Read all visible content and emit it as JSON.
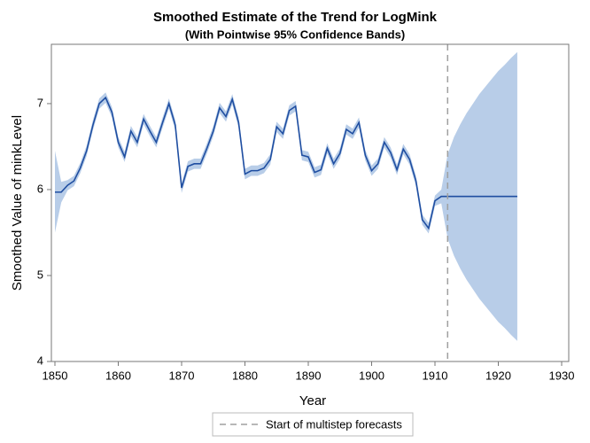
{
  "chart_data": {
    "type": "band-line",
    "title": "Smoothed Estimate of the Trend for LogMink",
    "subtitle": "(With Pointwise 95% Confidence Bands)",
    "x_label": "Year",
    "y_label": "Smoothed Value of minkLevel",
    "x": [
      1850,
      1851,
      1852,
      1853,
      1854,
      1855,
      1856,
      1857,
      1858,
      1859,
      1860,
      1861,
      1862,
      1863,
      1864,
      1865,
      1866,
      1867,
      1868,
      1869,
      1870,
      1871,
      1872,
      1873,
      1874,
      1875,
      1876,
      1877,
      1878,
      1879,
      1880,
      1881,
      1882,
      1883,
      1884,
      1885,
      1886,
      1887,
      1888,
      1889,
      1890,
      1891,
      1892,
      1893,
      1894,
      1895,
      1896,
      1897,
      1898,
      1899,
      1900,
      1901,
      1902,
      1903,
      1904,
      1905,
      1906,
      1907,
      1908,
      1909,
      1910,
      1911,
      1912,
      1913,
      1914,
      1915,
      1916,
      1917,
      1918,
      1919,
      1920,
      1921,
      1922,
      1923
    ],
    "series": [
      {
        "color": "#1f4ea1",
        "values": [
          5.97,
          5.97,
          6.05,
          6.1,
          6.25,
          6.45,
          6.75,
          7.0,
          7.07,
          6.9,
          6.55,
          6.38,
          6.68,
          6.55,
          6.82,
          6.68,
          6.55,
          6.78,
          7.0,
          6.75,
          6.02,
          6.27,
          6.3,
          6.3,
          6.48,
          6.68,
          6.95,
          6.85,
          7.05,
          6.78,
          6.18,
          6.22,
          6.22,
          6.25,
          6.35,
          6.73,
          6.65,
          6.92,
          6.97,
          6.4,
          6.38,
          6.2,
          6.23,
          6.48,
          6.3,
          6.42,
          6.7,
          6.65,
          6.78,
          6.4,
          6.22,
          6.3,
          6.55,
          6.43,
          6.23,
          6.47,
          6.35,
          6.1,
          5.65,
          5.55,
          5.87,
          5.92,
          5.92,
          5.92,
          5.92,
          5.92,
          5.92,
          5.92,
          5.92,
          5.92,
          5.92,
          5.92,
          5.92,
          5.92
        ]
      }
    ],
    "band": {
      "color": "#b8cde8",
      "lower": [
        5.5,
        5.85,
        5.99,
        6.04,
        6.19,
        6.39,
        6.69,
        6.94,
        7.01,
        6.84,
        6.49,
        6.32,
        6.62,
        6.49,
        6.76,
        6.62,
        6.49,
        6.72,
        6.94,
        6.69,
        5.96,
        6.21,
        6.24,
        6.24,
        6.42,
        6.62,
        6.89,
        6.79,
        6.99,
        6.72,
        6.12,
        6.16,
        6.16,
        6.19,
        6.29,
        6.67,
        6.59,
        6.86,
        6.91,
        6.34,
        6.32,
        6.14,
        6.17,
        6.42,
        6.24,
        6.36,
        6.64,
        6.59,
        6.72,
        6.34,
        6.16,
        6.24,
        6.49,
        6.37,
        6.17,
        6.41,
        6.29,
        6.04,
        5.59,
        5.49,
        5.81,
        5.84,
        5.43,
        5.23,
        5.08,
        4.95,
        4.84,
        4.73,
        4.64,
        4.55,
        4.46,
        4.39,
        4.31,
        4.24
      ],
      "upper": [
        6.45,
        6.09,
        6.11,
        6.16,
        6.31,
        6.51,
        6.81,
        7.06,
        7.13,
        6.96,
        6.61,
        6.44,
        6.74,
        6.61,
        6.88,
        6.74,
        6.61,
        6.84,
        7.06,
        6.81,
        6.08,
        6.33,
        6.36,
        6.36,
        6.54,
        6.74,
        7.01,
        6.91,
        7.11,
        6.84,
        6.24,
        6.28,
        6.28,
        6.31,
        6.41,
        6.79,
        6.71,
        6.98,
        7.03,
        6.46,
        6.44,
        6.26,
        6.29,
        6.54,
        6.36,
        6.48,
        6.76,
        6.71,
        6.84,
        6.46,
        6.28,
        6.36,
        6.61,
        6.49,
        6.29,
        6.53,
        6.41,
        6.16,
        5.71,
        5.61,
        5.93,
        6.0,
        6.41,
        6.61,
        6.76,
        6.89,
        7.0,
        7.11,
        7.2,
        7.29,
        7.38,
        7.45,
        7.53,
        7.6
      ]
    },
    "reference_line": {
      "x": 1912,
      "label": "Start of multistep forecasts",
      "color": "#a0a0a0"
    },
    "xlim": [
      1849.44,
      1931.12
    ],
    "xticks": [
      1850,
      1860,
      1870,
      1880,
      1890,
      1900,
      1910,
      1920,
      1930
    ],
    "ylim": [
      4,
      7.69
    ],
    "yticks": [
      4,
      5,
      6,
      7
    ],
    "legend": "bottom"
  }
}
